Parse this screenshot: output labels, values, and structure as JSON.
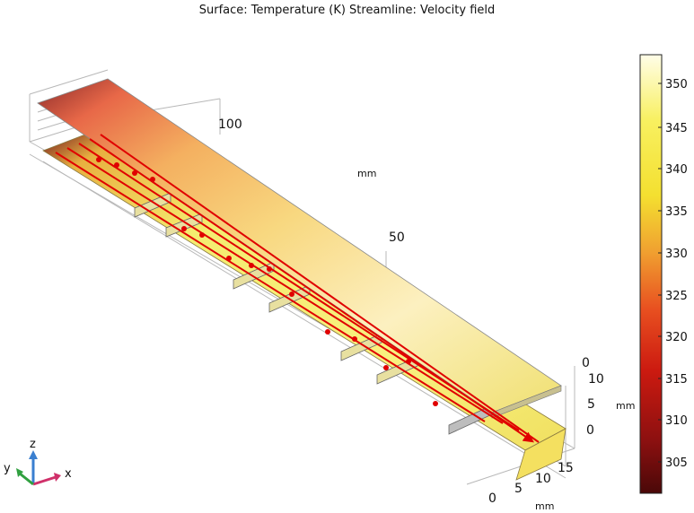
{
  "title": "Surface: Temperature (K)  Streamline: Velocity field",
  "axes": {
    "x_ticks": [
      "100",
      "50"
    ],
    "x_unit": "mm",
    "y_ticks": [
      "0",
      "5",
      "10",
      "15"
    ],
    "y_unit": "mm",
    "z_ticks": [
      "0",
      "5",
      "10"
    ],
    "z_unit": "mm",
    "tick_0": "0"
  },
  "colorbar": {
    "ticks": [
      "350",
      "345",
      "340",
      "335",
      "330",
      "325",
      "320",
      "315",
      "310",
      "305"
    ],
    "colors": [
      "#4a0808",
      "#8c1010",
      "#cc1a10",
      "#e85020",
      "#f0a030",
      "#f4e030",
      "#f8f060",
      "#fffde8"
    ]
  },
  "triad": {
    "x": "x",
    "y": "y",
    "z": "z"
  },
  "colors": {
    "streamline": "#e00000",
    "plate_hot": "#fffef0",
    "plate_cool": "#8a2020"
  }
}
